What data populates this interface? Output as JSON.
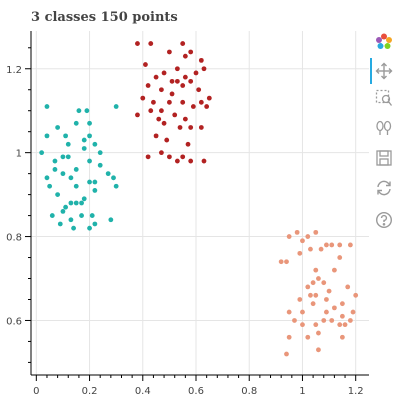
{
  "toolbar": {
    "tools": [
      {
        "name": "bokeh-logo-icon"
      },
      {
        "name": "pan-icon",
        "active": true
      },
      {
        "name": "box-zoom-icon"
      },
      {
        "name": "wheel-zoom-icon"
      },
      {
        "name": "save-icon"
      },
      {
        "name": "reset-icon"
      },
      {
        "name": "help-icon"
      }
    ],
    "active_color": "#26aae1",
    "icon_color": "#9a9a9a"
  },
  "chart_data": {
    "type": "scatter",
    "title": "3 classes 150 points",
    "xlabel": "",
    "ylabel": "",
    "xlim": [
      -0.02,
      1.25
    ],
    "ylim": [
      0.47,
      1.29
    ],
    "x_ticks": [
      0,
      0.2,
      0.4,
      0.6,
      0.8,
      1,
      1.2
    ],
    "x_tick_labels": [
      "0",
      "0.2",
      "0.4",
      "0.6",
      "0.8",
      "1",
      "1.2"
    ],
    "y_ticks": [
      0.6,
      0.8,
      1,
      1.2
    ],
    "y_tick_labels": [
      "0.6",
      "0.8",
      "1",
      "1.2"
    ],
    "grid": true,
    "legend": "none",
    "series": [
      {
        "color": "#20b2aa",
        "points": [
          [
            0.04,
            1.11
          ],
          [
            0.04,
            1.04
          ],
          [
            0.08,
            1.06
          ],
          [
            0.11,
            1.04
          ],
          [
            0.16,
            1.1
          ],
          [
            0.19,
            1.1
          ],
          [
            0.2,
            1.07
          ],
          [
            0.3,
            1.11
          ],
          [
            0.15,
            1.07
          ],
          [
            0.02,
            1.0
          ],
          [
            0.07,
            0.98
          ],
          [
            0.1,
            0.99
          ],
          [
            0.12,
            0.99
          ],
          [
            0.18,
            1.03
          ],
          [
            0.2,
            1.04
          ],
          [
            0.22,
            1.02
          ],
          [
            0.24,
            1.0
          ],
          [
            0.24,
            0.97
          ],
          [
            0.07,
            0.96
          ],
          [
            0.1,
            0.95
          ],
          [
            0.15,
            0.96
          ],
          [
            0.2,
            0.98
          ],
          [
            0.27,
            0.95
          ],
          [
            0.29,
            0.94
          ],
          [
            0.04,
            0.94
          ],
          [
            0.05,
            0.92
          ],
          [
            0.08,
            0.9
          ],
          [
            0.13,
            0.94
          ],
          [
            0.15,
            0.92
          ],
          [
            0.2,
            0.93
          ],
          [
            0.22,
            0.93
          ],
          [
            0.3,
            0.92
          ],
          [
            0.13,
            0.88
          ],
          [
            0.15,
            0.88
          ],
          [
            0.17,
            0.88
          ],
          [
            0.11,
            0.87
          ],
          [
            0.18,
            0.89
          ],
          [
            0.22,
            0.91
          ],
          [
            0.06,
            0.85
          ],
          [
            0.1,
            0.86
          ],
          [
            0.13,
            0.84
          ],
          [
            0.17,
            0.85
          ],
          [
            0.21,
            0.85
          ],
          [
            0.28,
            0.84
          ],
          [
            0.09,
            0.83
          ],
          [
            0.14,
            0.82
          ],
          [
            0.2,
            0.82
          ],
          [
            0.22,
            0.83
          ],
          [
            0.18,
            1.01
          ],
          [
            0.12,
            1.02
          ]
        ]
      },
      {
        "color": "#b22222",
        "points": [
          [
            0.38,
            1.26
          ],
          [
            0.43,
            1.26
          ],
          [
            0.5,
            1.24
          ],
          [
            0.55,
            1.26
          ],
          [
            0.56,
            1.23
          ],
          [
            0.58,
            1.24
          ],
          [
            0.62,
            1.22
          ],
          [
            0.63,
            1.2
          ],
          [
            0.41,
            1.21
          ],
          [
            0.45,
            1.18
          ],
          [
            0.48,
            1.19
          ],
          [
            0.51,
            1.17
          ],
          [
            0.53,
            1.2
          ],
          [
            0.56,
            1.18
          ],
          [
            0.6,
            1.19
          ],
          [
            0.42,
            1.16
          ],
          [
            0.47,
            1.15
          ],
          [
            0.51,
            1.14
          ],
          [
            0.53,
            1.17
          ],
          [
            0.55,
            1.16
          ],
          [
            0.58,
            1.17
          ],
          [
            0.61,
            1.15
          ],
          [
            0.65,
            1.13
          ],
          [
            0.4,
            1.13
          ],
          [
            0.44,
            1.12
          ],
          [
            0.47,
            1.1
          ],
          [
            0.5,
            1.12
          ],
          [
            0.55,
            1.12
          ],
          [
            0.59,
            1.11
          ],
          [
            0.62,
            1.12
          ],
          [
            0.64,
            1.11
          ],
          [
            0.38,
            1.09
          ],
          [
            0.43,
            1.1
          ],
          [
            0.46,
            1.08
          ],
          [
            0.48,
            1.07
          ],
          [
            0.52,
            1.09
          ],
          [
            0.56,
            1.08
          ],
          [
            0.58,
            1.06
          ],
          [
            0.62,
            1.06
          ],
          [
            0.45,
            1.04
          ],
          [
            0.49,
            1.03
          ],
          [
            0.54,
            1.06
          ],
          [
            0.57,
            1.02
          ],
          [
            0.42,
            0.99
          ],
          [
            0.47,
            1.0
          ],
          [
            0.5,
            0.99
          ],
          [
            0.53,
            0.98
          ],
          [
            0.55,
            0.99
          ],
          [
            0.58,
            0.98
          ],
          [
            0.63,
            0.98
          ]
        ]
      },
      {
        "color": "#e9967a",
        "points": [
          [
            0.95,
            0.8
          ],
          [
            0.98,
            0.81
          ],
          [
            1.0,
            0.79
          ],
          [
            1.02,
            0.8
          ],
          [
            1.05,
            0.81
          ],
          [
            1.09,
            0.78
          ],
          [
            1.11,
            0.78
          ],
          [
            1.14,
            0.78
          ],
          [
            1.18,
            0.78
          ],
          [
            0.92,
            0.74
          ],
          [
            0.94,
            0.74
          ],
          [
            0.99,
            0.76
          ],
          [
            1.03,
            0.77
          ],
          [
            1.07,
            0.77
          ],
          [
            1.14,
            0.75
          ],
          [
            1.05,
            0.72
          ],
          [
            1.08,
            0.69
          ],
          [
            1.12,
            0.72
          ],
          [
            1.06,
            0.7
          ],
          [
            1.02,
            0.68
          ],
          [
            1.04,
            0.69
          ],
          [
            1.1,
            0.67
          ],
          [
            0.99,
            0.65
          ],
          [
            1.03,
            0.66
          ],
          [
            1.05,
            0.66
          ],
          [
            1.09,
            0.65
          ],
          [
            1.15,
            0.64
          ],
          [
            1.17,
            0.68
          ],
          [
            1.2,
            0.66
          ],
          [
            0.95,
            0.62
          ],
          [
            1.0,
            0.62
          ],
          [
            1.04,
            0.64
          ],
          [
            1.09,
            0.62
          ],
          [
            1.12,
            0.63
          ],
          [
            1.15,
            0.61
          ],
          [
            1.19,
            0.62
          ],
          [
            0.97,
            0.6
          ],
          [
            1.0,
            0.59
          ],
          [
            1.05,
            0.59
          ],
          [
            1.08,
            0.6
          ],
          [
            1.11,
            0.6
          ],
          [
            1.14,
            0.59
          ],
          [
            1.16,
            0.59
          ],
          [
            1.18,
            0.6
          ],
          [
            0.95,
            0.56
          ],
          [
            1.02,
            0.56
          ],
          [
            1.06,
            0.57
          ],
          [
            1.15,
            0.56
          ],
          [
            0.94,
            0.52
          ],
          [
            1.06,
            0.53
          ]
        ]
      }
    ]
  }
}
